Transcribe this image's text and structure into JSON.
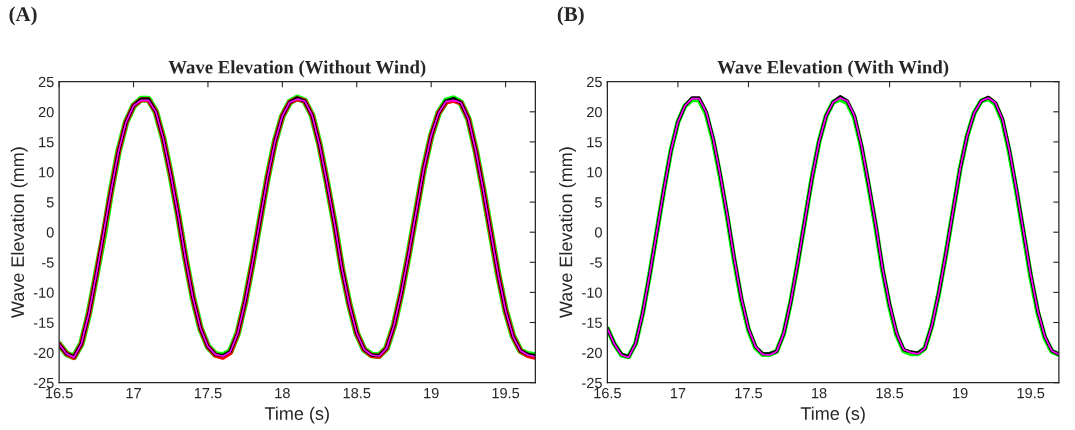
{
  "chart_data": [
    {
      "type": "line",
      "title": "Wave Elevation (Without Wind)",
      "xlabel": "Time (s)",
      "ylabel": "Wave Elevation (mm)",
      "annotations": [
        "(A)"
      ],
      "x": [
        16.5,
        16.55,
        16.6,
        16.65,
        16.7,
        16.75,
        16.8,
        16.85,
        16.9,
        16.95,
        17,
        17.05,
        17.1,
        17.15,
        17.2,
        17.25,
        17.3,
        17.35,
        17.4,
        17.45,
        17.5,
        17.55,
        17.6,
        17.65,
        17.7,
        17.75,
        17.8,
        17.85,
        17.9,
        17.95,
        18,
        18.05,
        18.1,
        18.15,
        18.2,
        18.25,
        18.3,
        18.35,
        18.4,
        18.45,
        18.5,
        18.55,
        18.6,
        18.65,
        18.7,
        18.75,
        18.8,
        18.85,
        18.9,
        18.95,
        19,
        19.05,
        19.1,
        19.15,
        19.2,
        19.25,
        19.3,
        19.35,
        19.4,
        19.45,
        19.5,
        19.55,
        19.6,
        19.65,
        19.7
      ],
      "series": [
        {
          "color": "#00ff00",
          "values": [
            -18.6,
            -20.2,
            -20.7,
            -18.5,
            -13.5,
            -7,
            -0.5,
            7,
            13.5,
            18.3,
            21,
            22.1,
            22.1,
            20,
            15.5,
            9.5,
            2.8,
            -4.5,
            -11,
            -16,
            -19,
            -20.3,
            -20.5,
            -19.8,
            -16.8,
            -11.5,
            -5,
            2,
            9,
            15,
            19.3,
            21.6,
            22.3,
            21.8,
            19.4,
            14.5,
            8.2,
            1.5,
            -6,
            -12,
            -16.8,
            -19.5,
            -20.4,
            -20.5,
            -19.3,
            -15.5,
            -10,
            -3.5,
            3.5,
            10.5,
            16,
            19.8,
            21.8,
            22.2,
            21.5,
            18.8,
            13.5,
            7,
            0,
            -7,
            -13,
            -17.3,
            -19.7,
            -20.3,
            -20.5
          ]
        },
        {
          "color": "#ff0000",
          "values": [
            -18.6,
            -20.2,
            -20.8,
            -18.5,
            -13.5,
            -7,
            0,
            7,
            13.5,
            18.3,
            21,
            22,
            22,
            20,
            15.5,
            9.5,
            2.8,
            -4.5,
            -11,
            -16,
            -19,
            -20.4,
            -20.8,
            -20,
            -16.8,
            -11.5,
            -5,
            2,
            9,
            15,
            19.3,
            21.6,
            22.2,
            21.8,
            19.4,
            14.5,
            8.2,
            1.5,
            -6,
            -12,
            -16.8,
            -19.5,
            -20.5,
            -20.6,
            -19.3,
            -15.5,
            -10,
            -3.5,
            3.5,
            10.5,
            16,
            19.8,
            21.6,
            21.9,
            21.5,
            18.8,
            13.5,
            7,
            0,
            -7,
            -13,
            -17.3,
            -19.7,
            -20.5,
            -20.8
          ]
        },
        {
          "color": "#000000",
          "values": [
            -18.6,
            -20.2,
            -20.7,
            -18.5,
            -13.5,
            -7,
            0,
            7,
            13.5,
            18.3,
            21,
            22.1,
            22.1,
            20,
            15.5,
            9.5,
            2.8,
            -4.5,
            -11,
            -16,
            -19,
            -20.3,
            -20.5,
            -19.8,
            -16.8,
            -11.5,
            -5,
            2,
            9,
            15,
            19.3,
            21.6,
            22.3,
            21.8,
            19.4,
            14.5,
            8.2,
            1.5,
            -6,
            -12,
            -16.8,
            -19.5,
            -20.4,
            -20.5,
            -19.3,
            -15.5,
            -10,
            -3.5,
            3.5,
            10.5,
            16,
            19.8,
            21.8,
            22.2,
            21.5,
            18.8,
            13.5,
            7,
            0,
            -7,
            -13,
            -17.3,
            -19.7,
            -20.3,
            -20.5
          ]
        },
        {
          "color": "#ff00ff",
          "values": [
            -18.6,
            -20.2,
            -20.8,
            -18.5,
            -13.5,
            -7,
            0,
            7,
            13.5,
            18.3,
            21,
            21.9,
            21.9,
            20,
            15.5,
            9.5,
            2.8,
            -4.5,
            -11,
            -16,
            -19,
            -20.3,
            -20.6,
            -19.9,
            -16.8,
            -11.5,
            -5,
            2,
            9,
            15,
            19.3,
            21.6,
            22.1,
            21.8,
            19.4,
            14.5,
            8.2,
            1.5,
            -6,
            -12,
            -16.8,
            -19.5,
            -20.4,
            -20.6,
            -19.3,
            -15.5,
            -10,
            -3.5,
            3.5,
            10.5,
            16,
            19.8,
            21.7,
            21.9,
            21.5,
            18.8,
            13.5,
            7,
            0,
            -7,
            -13,
            -17.3,
            -19.7,
            -20.4,
            -20.7
          ]
        }
      ],
      "xlim": [
        16.5,
        19.7
      ],
      "xticks": [
        16.5,
        17,
        17.5,
        18,
        18.5,
        19,
        19.5
      ],
      "ylim": [
        -25,
        25
      ],
      "yticks": [
        -25,
        -20,
        -15,
        -10,
        -5,
        0,
        5,
        10,
        15,
        20,
        25
      ],
      "grid": false,
      "legend": false,
      "line_style": "solid",
      "marker": "none"
    },
    {
      "type": "line",
      "title": "Wave Elevation (With Wind)",
      "xlabel": "Time (s)",
      "ylabel": "Wave Elevation (mm)",
      "annotations": [
        "(B)"
      ],
      "x": [
        16.5,
        16.55,
        16.6,
        16.65,
        16.7,
        16.75,
        16.8,
        16.85,
        16.9,
        16.95,
        17,
        17.05,
        17.1,
        17.15,
        17.2,
        17.25,
        17.3,
        17.35,
        17.4,
        17.45,
        17.5,
        17.55,
        17.6,
        17.65,
        17.7,
        17.75,
        17.8,
        17.85,
        17.9,
        17.95,
        18,
        18.05,
        18.1,
        18.15,
        18.2,
        18.25,
        18.3,
        18.35,
        18.4,
        18.45,
        18.5,
        18.55,
        18.6,
        18.65,
        18.7,
        18.75,
        18.8,
        18.85,
        18.9,
        18.95,
        19,
        19.05,
        19.1,
        19.15,
        19.2,
        19.25,
        19.3,
        19.35,
        19.4,
        19.45,
        19.5,
        19.55,
        19.6,
        19.65,
        19.7
      ],
      "series": [
        {
          "color": "#00ff00",
          "values": [
            -16,
            -18.6,
            -20.4,
            -20.7,
            -18.5,
            -13.5,
            -7,
            0,
            7,
            13.5,
            18.3,
            21,
            22,
            22,
            19.7,
            15.2,
            9.2,
            2.5,
            -4.8,
            -11.3,
            -16.2,
            -19.2,
            -20.3,
            -20.3,
            -19.8,
            -16.8,
            -11.5,
            -5,
            2,
            9,
            15,
            19.3,
            21.6,
            22.1,
            21.5,
            19.1,
            14.2,
            7.9,
            1.2,
            -6.3,
            -12.3,
            -17,
            -19.7,
            -20.2,
            -20.2,
            -19.3,
            -15.5,
            -10,
            -3.5,
            3.5,
            10.5,
            16,
            19.8,
            21.8,
            22.2,
            21.3,
            18.5,
            13.2,
            6.7,
            -0.3,
            -7.3,
            -13.3,
            -17.5,
            -19.8,
            -20.3
          ]
        },
        {
          "color": "#000000",
          "values": [
            -16,
            -18.6,
            -20.3,
            -20.7,
            -18.5,
            -13.5,
            -7,
            0,
            7,
            13.5,
            18.3,
            21,
            22.3,
            22.3,
            20,
            15.5,
            9.5,
            2.8,
            -4.5,
            -11,
            -16,
            -19,
            -20.2,
            -20.2,
            -19.8,
            -16.8,
            -11.5,
            -5,
            2,
            9,
            15,
            19.3,
            21.6,
            22.5,
            21.8,
            19.4,
            14.5,
            8.2,
            1.5,
            -6,
            -12,
            -16.8,
            -19.5,
            -19.9,
            -20.1,
            -19.3,
            -15.5,
            -10,
            -3.5,
            3.5,
            10.5,
            16,
            19.8,
            21.8,
            22.4,
            21.5,
            18.8,
            13.5,
            7,
            0,
            -7,
            -13,
            -17.3,
            -19.7,
            -20.3
          ]
        },
        {
          "color": "#ff00ff",
          "values": [
            -16,
            -18.6,
            -20.4,
            -20.8,
            -18.5,
            -13.5,
            -7,
            0,
            7,
            13.5,
            18.3,
            21,
            22.2,
            22.2,
            20,
            15.5,
            9.5,
            2.8,
            -4.5,
            -11,
            -16,
            -19,
            -20.3,
            -20.4,
            -19.8,
            -16.8,
            -11.5,
            -5,
            2,
            9,
            15,
            19.3,
            21.6,
            22.3,
            21.8,
            19.4,
            14.5,
            8.2,
            1.5,
            -6,
            -12,
            -16.8,
            -19.5,
            -20,
            -20.2,
            -19.3,
            -15.5,
            -10,
            -3.5,
            3.5,
            10.5,
            16,
            19.8,
            21.8,
            22.3,
            21.5,
            18.8,
            13.5,
            7,
            0,
            -7,
            -13,
            -17.3,
            -19.7,
            -20.3
          ]
        }
      ],
      "xlim": [
        16.5,
        19.7
      ],
      "xticks": [
        16.5,
        17,
        17.5,
        18,
        18.5,
        19,
        19.5
      ],
      "ylim": [
        -25,
        25
      ],
      "yticks": [
        -25,
        -20,
        -15,
        -10,
        -5,
        0,
        5,
        10,
        15,
        20,
        25
      ],
      "grid": false,
      "legend": false,
      "line_style": "solid",
      "marker": "none"
    }
  ]
}
